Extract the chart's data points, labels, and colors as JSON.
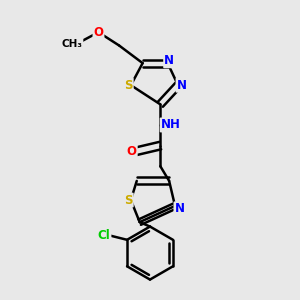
{
  "bg_color": "#e8e8e8",
  "bond_color": "#000000",
  "bond_width": 1.8,
  "atom_colors": {
    "N": "#0000ff",
    "O": "#ff0000",
    "S": "#ccaa00",
    "Cl": "#00cc00",
    "C": "#000000",
    "H": "#008888"
  },
  "font_size": 8.5,
  "fig_size": [
    3.0,
    3.0
  ],
  "dpi": 100
}
